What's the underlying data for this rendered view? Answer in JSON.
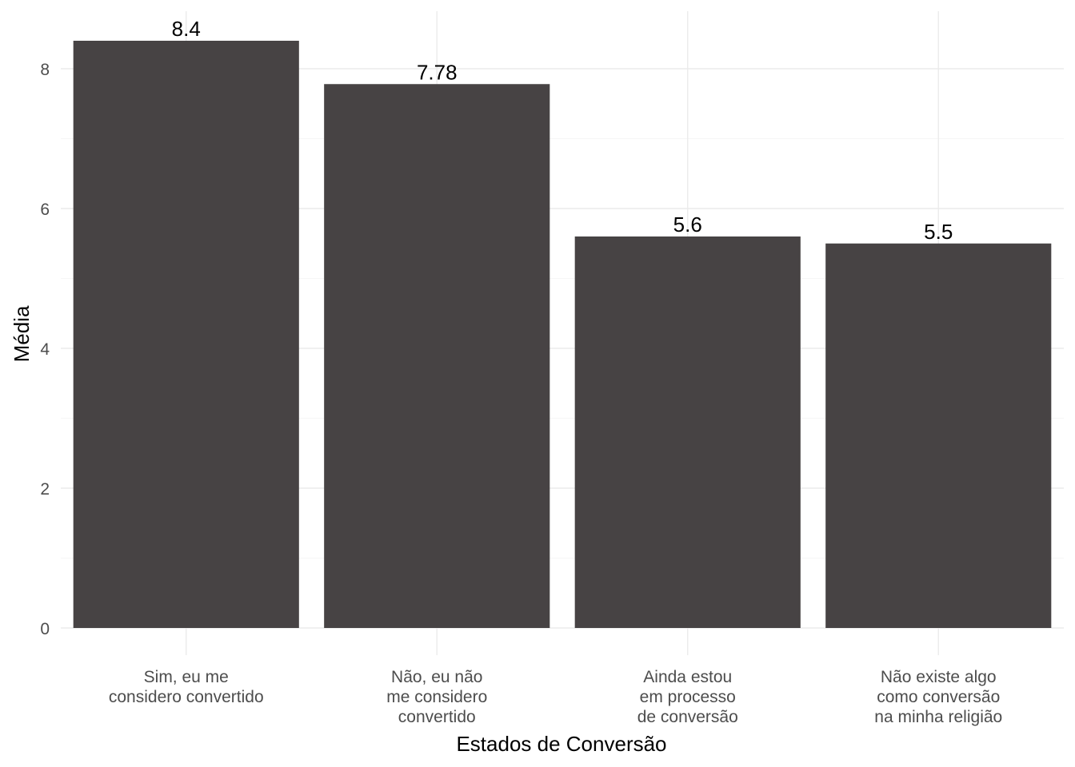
{
  "chart_data": {
    "type": "bar",
    "categories": [
      [
        "Sim, eu me",
        "considero convertido"
      ],
      [
        "Não, eu não",
        "me considero",
        "convertido"
      ],
      [
        "Ainda estou",
        "em processo",
        "de conversão"
      ],
      [
        "Não existe algo",
        "como conversão",
        "na minha religião"
      ]
    ],
    "values": [
      8.4,
      7.78,
      5.6,
      5.5
    ],
    "data_labels": [
      "8.4",
      "7.78",
      "5.6",
      "5.5"
    ],
    "xlabel": "Estados de Conversão",
    "ylabel": "Média",
    "ylim": [
      0,
      8.84
    ],
    "yticks": [
      0,
      2,
      4,
      6,
      8
    ],
    "grid": true,
    "bar_color": "#474344"
  }
}
